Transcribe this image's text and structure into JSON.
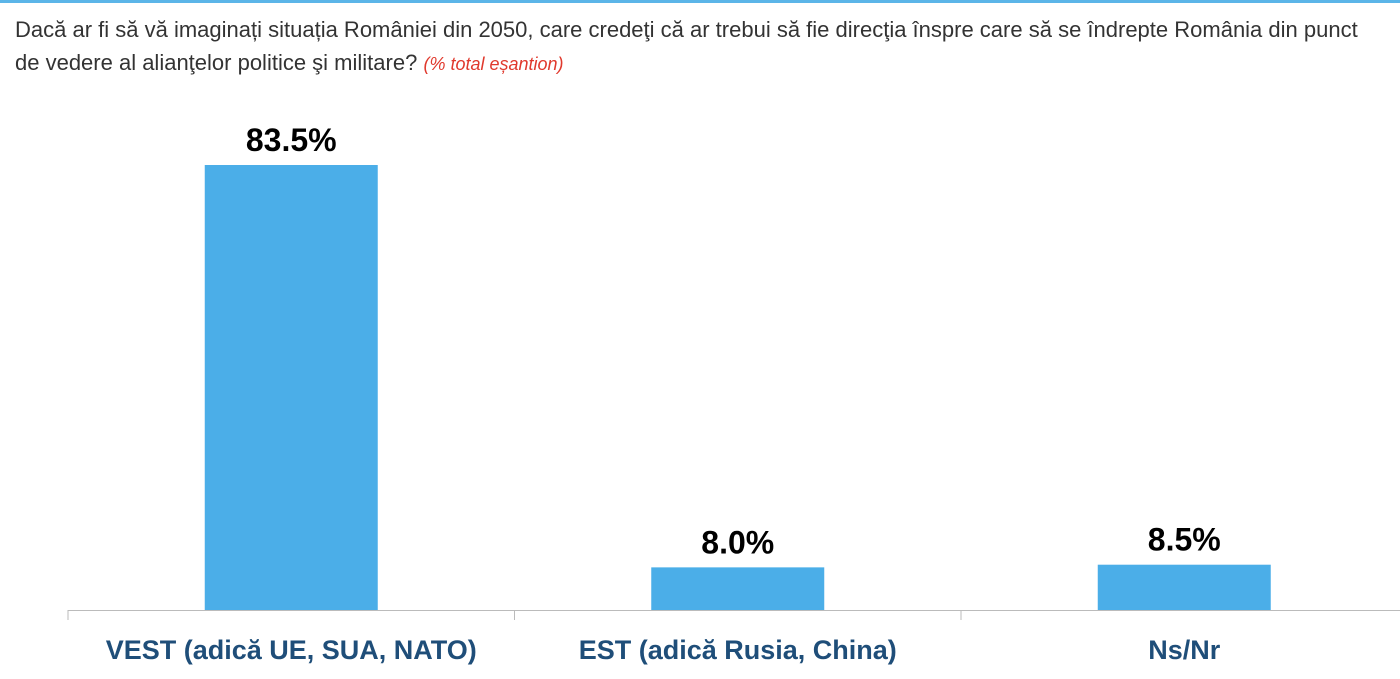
{
  "chart_data": {
    "type": "bar",
    "title": "Dacă ar fi să vă imaginați situația României din 2050, care credeţi că ar trebui să fie direcţia înspre care să se îndrepte România din punct de vedere al alianţelor politice şi militare?",
    "subtitle": "(% total eșantion)",
    "categories": [
      "VEST (adică UE, SUA, NATO)",
      "EST (adică Rusia, China)",
      "Ns/Nr"
    ],
    "values": [
      83.5,
      8.0,
      8.5
    ],
    "value_labels": [
      "83.5%",
      "8.0%",
      "8.5%"
    ],
    "color": "#4baee8"
  }
}
